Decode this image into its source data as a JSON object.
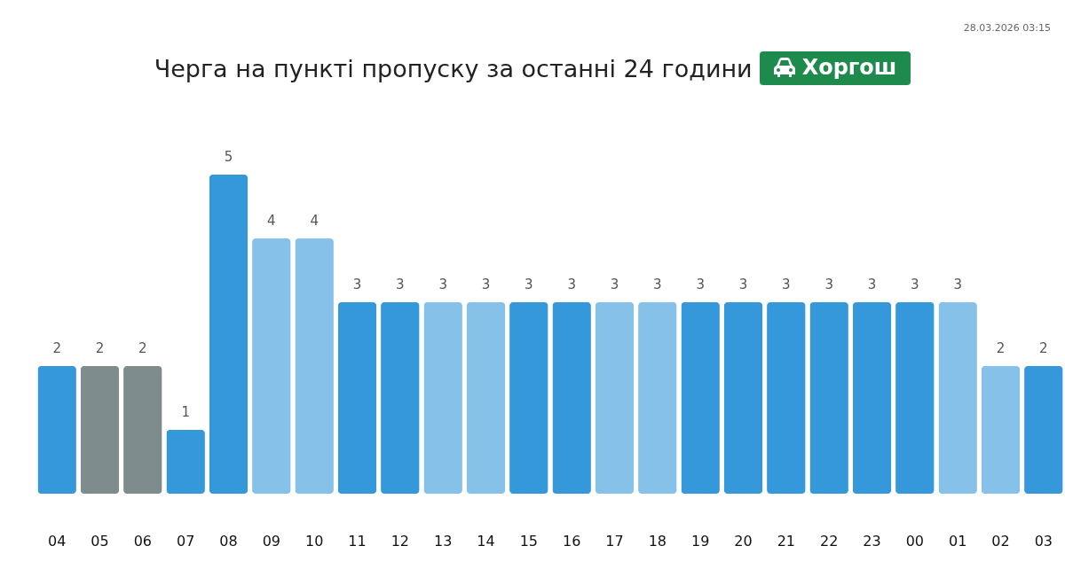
{
  "chart_data": {
    "type": "bar",
    "title": "Черга на пункті пропуску за останні 24 години",
    "subtitle": "Хоргош",
    "annotations": [
      "28.03.2026 03:15"
    ],
    "categories": [
      "04",
      "05",
      "06",
      "07",
      "08",
      "09",
      "10",
      "11",
      "12",
      "13",
      "14",
      "15",
      "16",
      "17",
      "18",
      "19",
      "20",
      "21",
      "22",
      "23",
      "00",
      "01",
      "02",
      "03"
    ],
    "values": [
      2,
      2,
      2,
      1,
      5,
      4,
      4,
      3,
      3,
      3,
      3,
      3,
      3,
      3,
      3,
      3,
      3,
      3,
      3,
      3,
      3,
      3,
      2,
      2
    ],
    "colors": [
      "#3498db",
      "#7f8c8d",
      "#7f8c8d",
      "#3498db",
      "#3498db",
      "#85c1e9",
      "#85c1e9",
      "#3498db",
      "#3498db",
      "#85c1e9",
      "#85c1e9",
      "#3498db",
      "#3498db",
      "#85c1e9",
      "#85c1e9",
      "#3498db",
      "#3498db",
      "#3498db",
      "#3498db",
      "#3498db",
      "#3498db",
      "#85c1e9",
      "#85c1e9",
      "#3498db"
    ],
    "data_labels": true
  }
}
